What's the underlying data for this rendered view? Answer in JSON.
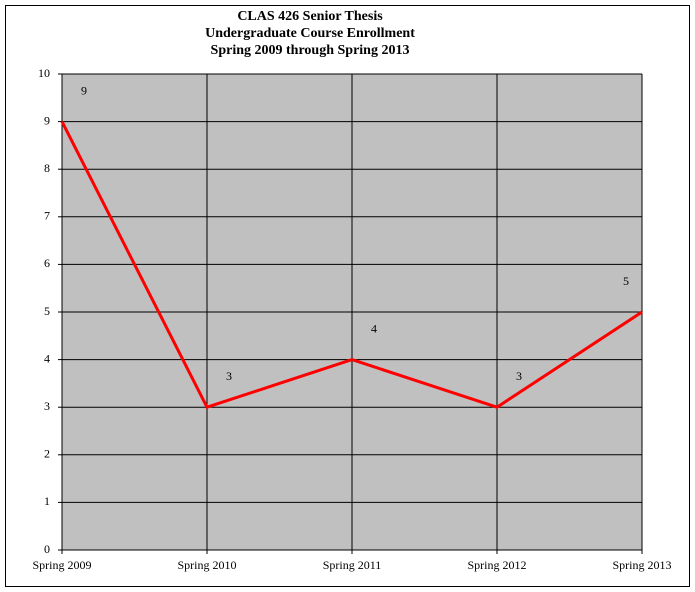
{
  "chart_data": {
    "type": "line",
    "title": [
      "CLAS 426 Senior Thesis",
      "Undergraduate Course Enrollment",
      "Spring 2009 through Spring 2013"
    ],
    "categories": [
      "Spring 2009",
      "Spring 2010",
      "Spring 2011",
      "Spring 2012",
      "Spring 2013"
    ],
    "values": [
      9,
      3,
      4,
      3,
      5
    ],
    "color": "#ff0000",
    "ylim": [
      0,
      10
    ],
    "yticks": [
      0,
      1,
      2,
      3,
      4,
      5,
      6,
      7,
      8,
      9,
      10
    ],
    "grid": true,
    "data_labels": true
  }
}
